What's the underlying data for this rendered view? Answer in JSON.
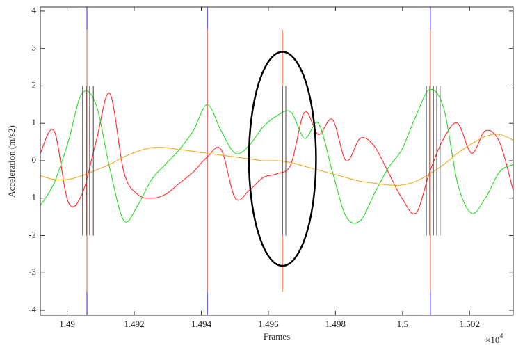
{
  "chart_data": {
    "type": "line",
    "xlabel": "Frames",
    "ylabel": "Acceleration (m/s2)",
    "x_multiplier": {
      "base": "×10",
      "exponent": "4"
    },
    "xlim": [
      1.4892,
      1.5033
    ],
    "ylim": [
      -4.13,
      4.11
    ],
    "xticks": [
      1.49,
      1.492,
      1.494,
      1.496,
      1.498,
      1.5,
      1.502
    ],
    "yticks": [
      -4,
      -3,
      -2,
      -1,
      0,
      1,
      2,
      3,
      4
    ],
    "x": [
      1.4892,
      1.48961,
      1.49003,
      1.49044,
      1.49086,
      1.49127,
      1.49169,
      1.4921,
      1.49252,
      1.49293,
      1.49335,
      1.49376,
      1.49418,
      1.49459,
      1.49501,
      1.49542,
      1.49584,
      1.49625,
      1.49667,
      1.49708,
      1.49749,
      1.49791,
      1.49832,
      1.49874,
      1.49915,
      1.49957,
      1.49998,
      1.5004,
      1.50081,
      1.50123,
      1.50164,
      1.50206,
      1.50247,
      1.50289,
      1.5033
    ],
    "series": [
      {
        "color": "#ff3333",
        "values": [
          0.2,
          0.8,
          -1.1,
          -0.9,
          0.5,
          1.8,
          -0.3,
          -0.9,
          -1.0,
          -0.9,
          -0.6,
          -0.3,
          0.1,
          0.3,
          -1.0,
          -0.8,
          -0.45,
          -0.35,
          -0.1,
          1.3,
          0.7,
          1.1,
          0.0,
          0.6,
          0.4,
          -0.3,
          -1.0,
          -1.4,
          -0.3,
          0.6,
          1.0,
          0.2,
          0.8,
          0.5,
          -0.8
        ]
      },
      {
        "color": "#33dd33",
        "values": [
          -1.2,
          -0.6,
          0.5,
          1.8,
          1.5,
          -0.2,
          -1.6,
          -1.2,
          -0.5,
          -0.1,
          0.3,
          0.8,
          1.5,
          0.8,
          0.2,
          0.4,
          0.9,
          1.2,
          1.3,
          0.6,
          1.0,
          -0.3,
          -1.5,
          -1.6,
          -0.9,
          -0.2,
          0.3,
          1.2,
          1.9,
          1.4,
          -0.6,
          -1.4,
          -1.0,
          -0.3,
          -0.1
        ]
      },
      {
        "color": "#f0b030",
        "values": [
          -0.4,
          -0.5,
          -0.5,
          -0.4,
          -0.25,
          -0.1,
          0.1,
          0.25,
          0.35,
          0.35,
          0.3,
          0.25,
          0.2,
          0.15,
          0.1,
          0.05,
          0.0,
          0.0,
          -0.05,
          -0.15,
          -0.25,
          -0.35,
          -0.45,
          -0.55,
          -0.6,
          -0.65,
          -0.65,
          -0.55,
          -0.35,
          -0.1,
          0.2,
          0.45,
          0.65,
          0.7,
          0.55
        ]
      }
    ],
    "trigger_lines": {
      "color": "#2222ff",
      "x": [
        1.49059,
        1.49418,
        1.50083
      ]
    },
    "window_lines": {
      "color": "#ff6633",
      "x": [
        1.49059,
        1.49418,
        1.49642,
        1.50083
      ],
      "range": [
        -3.5,
        3.5
      ]
    },
    "sample_lines": {
      "color": "#444444",
      "x": [
        1.49046,
        1.49057,
        1.49067,
        1.49078,
        1.49642,
        1.49652,
        1.50071,
        1.50081,
        1.50092,
        1.50102,
        1.50112
      ],
      "range": [
        -2,
        2
      ]
    },
    "ellipse": {
      "cx": 1.49642,
      "cy": 0.05,
      "rx": 0.001,
      "ry": 2.86,
      "color": "#000000"
    }
  }
}
